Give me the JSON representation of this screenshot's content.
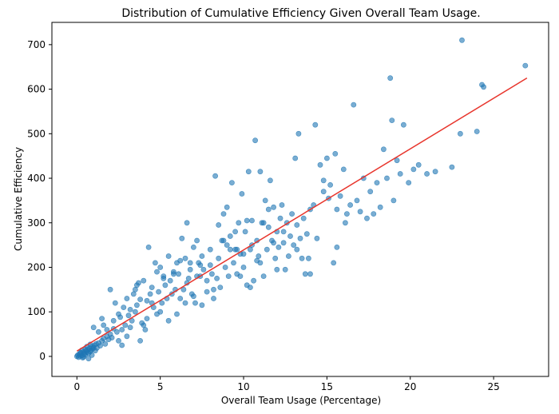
{
  "chart_data": {
    "type": "scatter",
    "title": "Distribution of Cumulative Efficiency Given Overall Team Usage.",
    "xlabel": "Overall Team Usage (Percentage)",
    "ylabel": "Cumulative Efficiency",
    "xlim": [
      -1.5,
      28.3
    ],
    "ylim": [
      -45,
      750
    ],
    "xticks": [
      0,
      5,
      10,
      15,
      20,
      25
    ],
    "yticks": [
      0,
      100,
      200,
      300,
      400,
      500,
      600,
      700
    ],
    "grid": false,
    "point_color": "#1f77b4",
    "line_color": "#e8352c",
    "trendline": {
      "x": [
        0,
        27
      ],
      "y": [
        12,
        625
      ]
    },
    "points": [
      [
        0.0,
        0
      ],
      [
        0.05,
        3
      ],
      [
        0.1,
        -2
      ],
      [
        0.15,
        5
      ],
      [
        0.2,
        1
      ],
      [
        0.25,
        8
      ],
      [
        0.3,
        2
      ],
      [
        0.35,
        -3
      ],
      [
        0.4,
        10
      ],
      [
        0.45,
        6
      ],
      [
        0.5,
        4
      ],
      [
        0.55,
        12
      ],
      [
        0.6,
        9
      ],
      [
        0.65,
        15
      ],
      [
        0.7,
        7
      ],
      [
        0.75,
        18
      ],
      [
        0.8,
        11
      ],
      [
        0.85,
        14
      ],
      [
        0.9,
        22
      ],
      [
        0.95,
        17
      ],
      [
        1.0,
        20
      ],
      [
        1.05,
        25
      ],
      [
        1.1,
        13
      ],
      [
        1.15,
        28
      ],
      [
        1.2,
        19
      ],
      [
        0.3,
        14
      ],
      [
        0.6,
        22
      ],
      [
        0.8,
        27
      ],
      [
        0.2,
        9
      ],
      [
        0.5,
        16
      ],
      [
        0.7,
        -5
      ],
      [
        0.4,
        -1
      ],
      [
        0.9,
        3
      ],
      [
        1.3,
        30
      ],
      [
        1.4,
        24
      ],
      [
        1.5,
        35
      ],
      [
        1.6,
        40
      ],
      [
        1.7,
        28
      ],
      [
        1.8,
        45
      ],
      [
        1.9,
        38
      ],
      [
        1.0,
        65
      ],
      [
        1.3,
        55
      ],
      [
        1.5,
        85
      ],
      [
        1.6,
        70
      ],
      [
        1.8,
        60
      ],
      [
        2.0,
        50
      ],
      [
        2.1,
        42
      ],
      [
        2.2,
        62
      ],
      [
        2.3,
        120
      ],
      [
        2.4,
        55
      ],
      [
        2.5,
        95
      ],
      [
        2.6,
        88
      ],
      [
        2.7,
        25
      ],
      [
        2.8,
        110
      ],
      [
        2.9,
        70
      ],
      [
        3.0,
        130
      ],
      [
        3.1,
        92
      ],
      [
        3.2,
        105
      ],
      [
        3.3,
        80
      ],
      [
        3.4,
        140
      ],
      [
        3.5,
        150
      ],
      [
        3.6,
        115
      ],
      [
        3.7,
        165
      ],
      [
        3.8,
        128
      ],
      [
        3.9,
        75
      ],
      [
        4.0,
        170
      ],
      [
        4.1,
        60
      ],
      [
        4.2,
        85
      ],
      [
        4.3,
        245
      ],
      [
        4.4,
        140
      ],
      [
        4.5,
        155
      ],
      [
        4.6,
        110
      ],
      [
        4.7,
        210
      ],
      [
        4.8,
        95
      ],
      [
        4.9,
        145
      ],
      [
        5.0,
        200
      ],
      [
        5.1,
        120
      ],
      [
        5.2,
        180
      ],
      [
        5.3,
        160
      ],
      [
        5.4,
        130
      ],
      [
        5.5,
        225
      ],
      [
        5.6,
        170
      ],
      [
        5.7,
        140
      ],
      [
        5.8,
        190
      ],
      [
        5.9,
        150
      ],
      [
        6.0,
        210
      ],
      [
        6.1,
        185
      ],
      [
        6.2,
        130
      ],
      [
        6.3,
        265
      ],
      [
        6.4,
        150
      ],
      [
        6.5,
        220
      ],
      [
        6.6,
        300
      ],
      [
        6.7,
        175
      ],
      [
        6.8,
        195
      ],
      [
        6.9,
        140
      ],
      [
        7.0,
        245
      ],
      [
        7.1,
        120
      ],
      [
        7.2,
        260
      ],
      [
        7.3,
        210
      ],
      [
        7.4,
        180
      ],
      [
        2.0,
        150
      ],
      [
        2.2,
        80
      ],
      [
        2.5,
        35
      ],
      [
        2.7,
        60
      ],
      [
        3.0,
        45
      ],
      [
        3.2,
        65
      ],
      [
        3.5,
        100
      ],
      [
        3.8,
        35
      ],
      [
        4.0,
        70
      ],
      [
        4.5,
        120
      ],
      [
        5.0,
        100
      ],
      [
        5.5,
        80
      ],
      [
        6.0,
        95
      ],
      [
        6.5,
        120
      ],
      [
        7.0,
        135
      ],
      [
        7.5,
        115
      ],
      [
        3.6,
        160
      ],
      [
        4.2,
        125
      ],
      [
        4.8,
        190
      ],
      [
        5.2,
        175
      ],
      [
        7.5,
        225
      ],
      [
        7.6,
        195
      ],
      [
        7.8,
        170
      ],
      [
        8.0,
        240
      ],
      [
        8.1,
        185
      ],
      [
        8.2,
        150
      ],
      [
        8.3,
        405
      ],
      [
        8.4,
        175
      ],
      [
        8.5,
        220
      ],
      [
        8.6,
        155
      ],
      [
        8.7,
        260
      ],
      [
        8.8,
        320
      ],
      [
        8.9,
        200
      ],
      [
        9.0,
        335
      ],
      [
        9.1,
        180
      ],
      [
        9.2,
        270
      ],
      [
        9.3,
        390
      ],
      [
        9.4,
        210
      ],
      [
        9.5,
        240
      ],
      [
        9.6,
        185
      ],
      [
        9.7,
        300
      ],
      [
        9.8,
        230
      ],
      [
        9.9,
        365
      ],
      [
        10.0,
        200
      ],
      [
        10.1,
        280
      ],
      [
        10.2,
        160
      ],
      [
        10.3,
        415
      ],
      [
        10.4,
        240
      ],
      [
        10.5,
        305
      ],
      [
        10.6,
        170
      ],
      [
        10.7,
        485
      ],
      [
        10.8,
        260
      ],
      [
        10.9,
        225
      ],
      [
        11.0,
        415
      ],
      [
        11.1,
        300
      ],
      [
        11.2,
        180
      ],
      [
        11.3,
        350
      ],
      [
        11.4,
        240
      ],
      [
        11.5,
        290
      ],
      [
        11.6,
        395
      ],
      [
        11.7,
        260
      ],
      [
        11.8,
        335
      ],
      [
        11.9,
        220
      ],
      [
        12.0,
        280
      ],
      [
        12.1,
        245
      ],
      [
        12.2,
        310
      ],
      [
        12.3,
        340
      ],
      [
        12.4,
        255
      ],
      [
        12.5,
        195
      ],
      [
        12.6,
        300
      ],
      [
        12.7,
        225
      ],
      [
        12.8,
        270
      ],
      [
        12.9,
        320
      ],
      [
        13.0,
        250
      ],
      [
        13.1,
        445
      ],
      [
        13.2,
        295
      ],
      [
        13.3,
        500
      ],
      [
        13.4,
        265
      ],
      [
        13.5,
        220
      ],
      [
        13.6,
        310
      ],
      [
        13.7,
        185
      ],
      [
        13.8,
        275
      ],
      [
        13.9,
        220
      ],
      [
        14.0,
        330
      ],
      [
        14.2,
        340
      ],
      [
        14.3,
        520
      ],
      [
        14.4,
        265
      ],
      [
        14.6,
        430
      ],
      [
        14.8,
        370
      ],
      [
        15.0,
        445
      ],
      [
        15.1,
        355
      ],
      [
        15.2,
        385
      ],
      [
        15.4,
        210
      ],
      [
        15.5,
        455
      ],
      [
        15.6,
        245
      ],
      [
        15.8,
        360
      ],
      [
        16.0,
        420
      ],
      [
        16.1,
        300
      ],
      [
        16.2,
        320
      ],
      [
        16.4,
        340
      ],
      [
        16.6,
        565
      ],
      [
        16.8,
        350
      ],
      [
        17.0,
        325
      ],
      [
        17.2,
        400
      ],
      [
        17.4,
        310
      ],
      [
        17.6,
        370
      ],
      [
        17.8,
        320
      ],
      [
        18.0,
        390
      ],
      [
        18.2,
        335
      ],
      [
        18.4,
        465
      ],
      [
        18.6,
        400
      ],
      [
        18.8,
        625
      ],
      [
        18.9,
        530
      ],
      [
        19.0,
        350
      ],
      [
        19.2,
        440
      ],
      [
        19.4,
        410
      ],
      [
        19.6,
        520
      ],
      [
        19.9,
        390
      ],
      [
        20.2,
        420
      ],
      [
        20.5,
        430
      ],
      [
        21.0,
        410
      ],
      [
        21.5,
        415
      ],
      [
        22.5,
        425
      ],
      [
        23.0,
        500
      ],
      [
        23.1,
        710
      ],
      [
        24.0,
        505
      ],
      [
        24.3,
        610
      ],
      [
        24.4,
        605
      ],
      [
        26.9,
        653
      ],
      [
        9.5,
        280
      ],
      [
        10.0,
        230
      ],
      [
        10.5,
        250
      ],
      [
        11.0,
        210
      ],
      [
        11.5,
        330
      ],
      [
        12.0,
        195
      ],
      [
        6.8,
        210
      ],
      [
        7.2,
        180
      ],
      [
        7.8,
        145
      ],
      [
        8.2,
        130
      ],
      [
        8.8,
        260
      ],
      [
        9.2,
        240
      ],
      [
        9.8,
        180
      ],
      [
        10.4,
        155
      ],
      [
        11.2,
        300
      ],
      [
        11.8,
        255
      ],
      [
        12.4,
        280
      ],
      [
        13.2,
        240
      ],
      [
        14.0,
        185
      ],
      [
        14.8,
        395
      ],
      [
        15.6,
        330
      ],
      [
        5.8,
        185
      ],
      [
        6.2,
        215
      ],
      [
        6.6,
        165
      ],
      [
        7.4,
        205
      ],
      [
        8.0,
        205
      ],
      [
        8.5,
        295
      ],
      [
        9.0,
        250
      ],
      [
        9.6,
        240
      ],
      [
        10.2,
        305
      ],
      [
        10.8,
        215
      ]
    ]
  }
}
